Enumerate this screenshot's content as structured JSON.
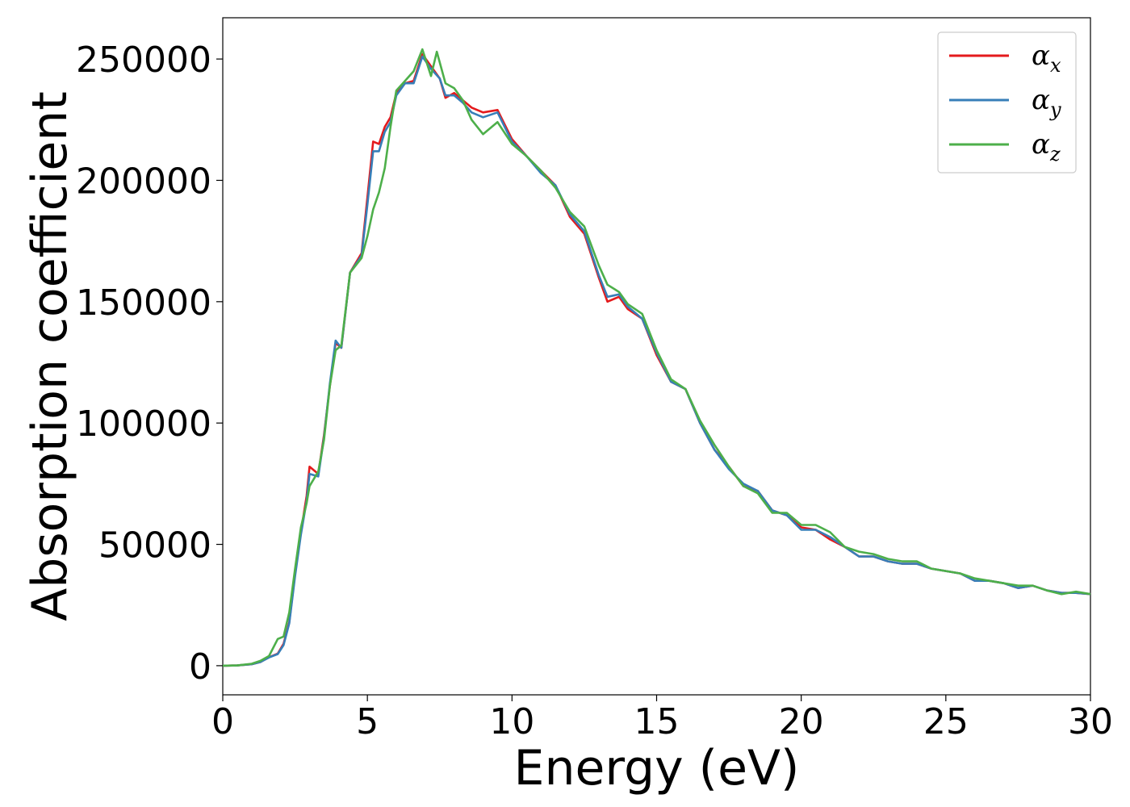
{
  "chart_data": {
    "type": "line",
    "xlabel": "Energy (eV)",
    "ylabel": "Absorption coefficient",
    "xlim": [
      0,
      30
    ],
    "ylim": [
      -12000,
      267000
    ],
    "xticks": [
      0,
      5,
      10,
      15,
      20,
      25,
      30
    ],
    "yticks": [
      0,
      50000,
      100000,
      150000,
      200000,
      250000
    ],
    "grid": false,
    "legend_position": "top-right",
    "legend_symbol": "α",
    "series": [
      {
        "name": "x",
        "color": "#e41a1c",
        "points": [
          [
            0,
            0
          ],
          [
            0.5,
            100
          ],
          [
            1,
            600
          ],
          [
            1.3,
            1500
          ],
          [
            1.6,
            3500
          ],
          [
            1.9,
            5000
          ],
          [
            2.1,
            9000
          ],
          [
            2.3,
            18000
          ],
          [
            2.5,
            38000
          ],
          [
            2.7,
            55000
          ],
          [
            2.9,
            70000
          ],
          [
            3.0,
            82000
          ],
          [
            3.3,
            79000
          ],
          [
            3.5,
            95000
          ],
          [
            3.7,
            115000
          ],
          [
            3.9,
            133000
          ],
          [
            4.1,
            131000
          ],
          [
            4.4,
            162000
          ],
          [
            4.8,
            170000
          ],
          [
            5.0,
            193000
          ],
          [
            5.2,
            216000
          ],
          [
            5.4,
            215000
          ],
          [
            5.6,
            222000
          ],
          [
            5.8,
            226000
          ],
          [
            6.0,
            236000
          ],
          [
            6.3,
            240000
          ],
          [
            6.6,
            241000
          ],
          [
            6.9,
            252000
          ],
          [
            7.2,
            247000
          ],
          [
            7.5,
            242000
          ],
          [
            7.7,
            234000
          ],
          [
            8.0,
            236000
          ],
          [
            8.3,
            233000
          ],
          [
            8.6,
            230000
          ],
          [
            9.0,
            228000
          ],
          [
            9.5,
            229000
          ],
          [
            10.0,
            217000
          ],
          [
            10.5,
            210000
          ],
          [
            11.0,
            204000
          ],
          [
            11.5,
            198000
          ],
          [
            12.0,
            185000
          ],
          [
            12.5,
            178000
          ],
          [
            13.0,
            160000
          ],
          [
            13.3,
            150000
          ],
          [
            13.7,
            152000
          ],
          [
            14.0,
            147000
          ],
          [
            14.5,
            143000
          ],
          [
            15.0,
            128000
          ],
          [
            15.5,
            117000
          ],
          [
            16.0,
            114000
          ],
          [
            16.5,
            100000
          ],
          [
            17.0,
            89000
          ],
          [
            17.5,
            82000
          ],
          [
            18.0,
            74000
          ],
          [
            18.5,
            72000
          ],
          [
            19.0,
            64000
          ],
          [
            19.5,
            62000
          ],
          [
            20.0,
            57000
          ],
          [
            20.5,
            56000
          ],
          [
            21.0,
            52000
          ],
          [
            21.5,
            49000
          ],
          [
            22.0,
            45000
          ],
          [
            22.5,
            45000
          ],
          [
            23.0,
            43000
          ],
          [
            23.5,
            42000
          ],
          [
            24.0,
            42000
          ],
          [
            24.5,
            40000
          ],
          [
            25.0,
            39000
          ],
          [
            25.5,
            38000
          ],
          [
            26.0,
            35000
          ],
          [
            26.5,
            35000
          ],
          [
            27.0,
            34000
          ],
          [
            27.5,
            32000
          ],
          [
            28.0,
            33000
          ],
          [
            28.5,
            31000
          ],
          [
            29.0,
            30000
          ],
          [
            29.5,
            30000
          ],
          [
            30.0,
            29500
          ]
        ]
      },
      {
        "name": "y",
        "color": "#377eb8",
        "points": [
          [
            0,
            0
          ],
          [
            0.5,
            100
          ],
          [
            1,
            600
          ],
          [
            1.3,
            1500
          ],
          [
            1.6,
            3400
          ],
          [
            1.9,
            4800
          ],
          [
            2.1,
            8500
          ],
          [
            2.3,
            17500
          ],
          [
            2.5,
            37000
          ],
          [
            2.7,
            54000
          ],
          [
            2.9,
            68000
          ],
          [
            3.0,
            79000
          ],
          [
            3.3,
            78000
          ],
          [
            3.5,
            94000
          ],
          [
            3.7,
            116000
          ],
          [
            3.9,
            134000
          ],
          [
            4.1,
            131000
          ],
          [
            4.4,
            162000
          ],
          [
            4.8,
            169000
          ],
          [
            5.0,
            190000
          ],
          [
            5.2,
            212000
          ],
          [
            5.4,
            212000
          ],
          [
            5.6,
            220000
          ],
          [
            5.8,
            224000
          ],
          [
            6.0,
            235000
          ],
          [
            6.3,
            240000
          ],
          [
            6.6,
            240000
          ],
          [
            6.9,
            251000
          ],
          [
            7.2,
            246000
          ],
          [
            7.5,
            242000
          ],
          [
            7.7,
            235000
          ],
          [
            8.0,
            235000
          ],
          [
            8.3,
            232000
          ],
          [
            8.6,
            228000
          ],
          [
            9.0,
            226000
          ],
          [
            9.5,
            228000
          ],
          [
            10.0,
            216000
          ],
          [
            10.5,
            210000
          ],
          [
            11.0,
            203000
          ],
          [
            11.5,
            198000
          ],
          [
            12.0,
            186000
          ],
          [
            12.5,
            179000
          ],
          [
            13.0,
            161000
          ],
          [
            13.3,
            152000
          ],
          [
            13.7,
            153000
          ],
          [
            14.0,
            148000
          ],
          [
            14.5,
            143000
          ],
          [
            15.0,
            129000
          ],
          [
            15.5,
            117000
          ],
          [
            16.0,
            114000
          ],
          [
            16.5,
            100000
          ],
          [
            17.0,
            89000
          ],
          [
            17.5,
            81000
          ],
          [
            18.0,
            75000
          ],
          [
            18.5,
            72000
          ],
          [
            19.0,
            64000
          ],
          [
            19.5,
            62000
          ],
          [
            20.0,
            56000
          ],
          [
            20.5,
            56000
          ],
          [
            21.0,
            53000
          ],
          [
            21.5,
            49000
          ],
          [
            22.0,
            45000
          ],
          [
            22.5,
            45000
          ],
          [
            23.0,
            43000
          ],
          [
            23.5,
            42000
          ],
          [
            24.0,
            42000
          ],
          [
            24.5,
            40000
          ],
          [
            25.0,
            39000
          ],
          [
            25.5,
            38000
          ],
          [
            26.0,
            35000
          ],
          [
            26.5,
            35000
          ],
          [
            27.0,
            34000
          ],
          [
            27.5,
            32000
          ],
          [
            28.0,
            33000
          ],
          [
            28.5,
            31000
          ],
          [
            29.0,
            30000
          ],
          [
            29.5,
            30000
          ],
          [
            30.0,
            29500
          ]
        ]
      },
      {
        "name": "z",
        "color": "#4daf4a",
        "points": [
          [
            0,
            0
          ],
          [
            0.5,
            100
          ],
          [
            1,
            800
          ],
          [
            1.3,
            2000
          ],
          [
            1.6,
            4000
          ],
          [
            1.9,
            11000
          ],
          [
            2.1,
            12000
          ],
          [
            2.3,
            22000
          ],
          [
            2.5,
            40000
          ],
          [
            2.7,
            57000
          ],
          [
            2.9,
            67000
          ],
          [
            3.0,
            74000
          ],
          [
            3.3,
            80000
          ],
          [
            3.5,
            93000
          ],
          [
            3.7,
            115000
          ],
          [
            3.9,
            130000
          ],
          [
            4.1,
            132000
          ],
          [
            4.4,
            162000
          ],
          [
            4.8,
            168000
          ],
          [
            5.0,
            177000
          ],
          [
            5.2,
            188000
          ],
          [
            5.4,
            195000
          ],
          [
            5.6,
            205000
          ],
          [
            5.8,
            222000
          ],
          [
            6.0,
            237000
          ],
          [
            6.3,
            241000
          ],
          [
            6.6,
            245000
          ],
          [
            6.9,
            254000
          ],
          [
            7.2,
            243000
          ],
          [
            7.4,
            253000
          ],
          [
            7.7,
            240000
          ],
          [
            8.0,
            238000
          ],
          [
            8.3,
            233000
          ],
          [
            8.6,
            225000
          ],
          [
            9.0,
            219000
          ],
          [
            9.5,
            224000
          ],
          [
            10.0,
            215000
          ],
          [
            10.5,
            210000
          ],
          [
            11.0,
            204000
          ],
          [
            11.5,
            197000
          ],
          [
            12.0,
            187000
          ],
          [
            12.5,
            181000
          ],
          [
            13.0,
            165000
          ],
          [
            13.3,
            157000
          ],
          [
            13.7,
            154000
          ],
          [
            14.0,
            149000
          ],
          [
            14.5,
            145000
          ],
          [
            15.0,
            130000
          ],
          [
            15.5,
            118000
          ],
          [
            16.0,
            114000
          ],
          [
            16.5,
            101000
          ],
          [
            17.0,
            91000
          ],
          [
            17.5,
            82000
          ],
          [
            18.0,
            74000
          ],
          [
            18.5,
            71000
          ],
          [
            19.0,
            63000
          ],
          [
            19.5,
            63000
          ],
          [
            20.0,
            58000
          ],
          [
            20.5,
            58000
          ],
          [
            21.0,
            55000
          ],
          [
            21.5,
            49000
          ],
          [
            22.0,
            47000
          ],
          [
            22.5,
            46000
          ],
          [
            23.0,
            44000
          ],
          [
            23.5,
            43000
          ],
          [
            24.0,
            43000
          ],
          [
            24.5,
            40000
          ],
          [
            25.0,
            39000
          ],
          [
            25.5,
            38000
          ],
          [
            26.0,
            36000
          ],
          [
            26.5,
            35000
          ],
          [
            27.0,
            34000
          ],
          [
            27.5,
            33000
          ],
          [
            28.0,
            33000
          ],
          [
            28.5,
            31000
          ],
          [
            29.0,
            29500
          ],
          [
            29.5,
            30500
          ],
          [
            30.0,
            29500
          ]
        ]
      }
    ]
  }
}
